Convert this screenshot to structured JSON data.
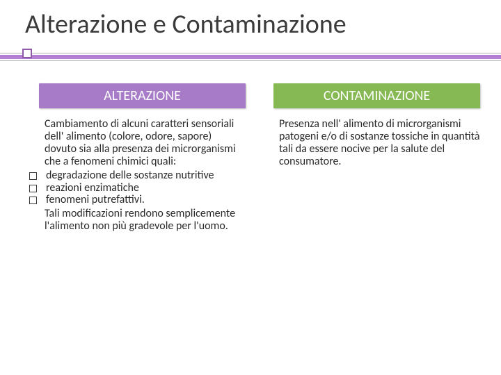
{
  "title": "Alterazione e Contaminazione",
  "left": {
    "header_bg": "#a77bc8",
    "header": "ALTERAZIONE",
    "pre": "Cambiamento di alcuni caratteri sensoriali dell' alimento (colore, odore, sapore) dovuto sia alla presenza dei microrganismi che a fenomeni chimici quali:",
    "items": [
      " degradazione delle sostanze nutritive",
      "reazioni enzimatiche",
      " fenomeni putrefattivi."
    ],
    "post": "Tali modificazioni rendono semplicemente l'alimento non più gradevole per l'uomo."
  },
  "right": {
    "header_bg": "#86b953",
    "header": "CONTAMINAZIONE",
    "text": "Presenza nell' alimento di microrganismi patogeni e/o di sostanze tossiche in quantità tali da essere nocive per la salute del consumatore."
  },
  "colors": {
    "accent_purple": "#b57fd4",
    "bullet_border": "#8f5aa8",
    "text": "#2a2a2a"
  }
}
